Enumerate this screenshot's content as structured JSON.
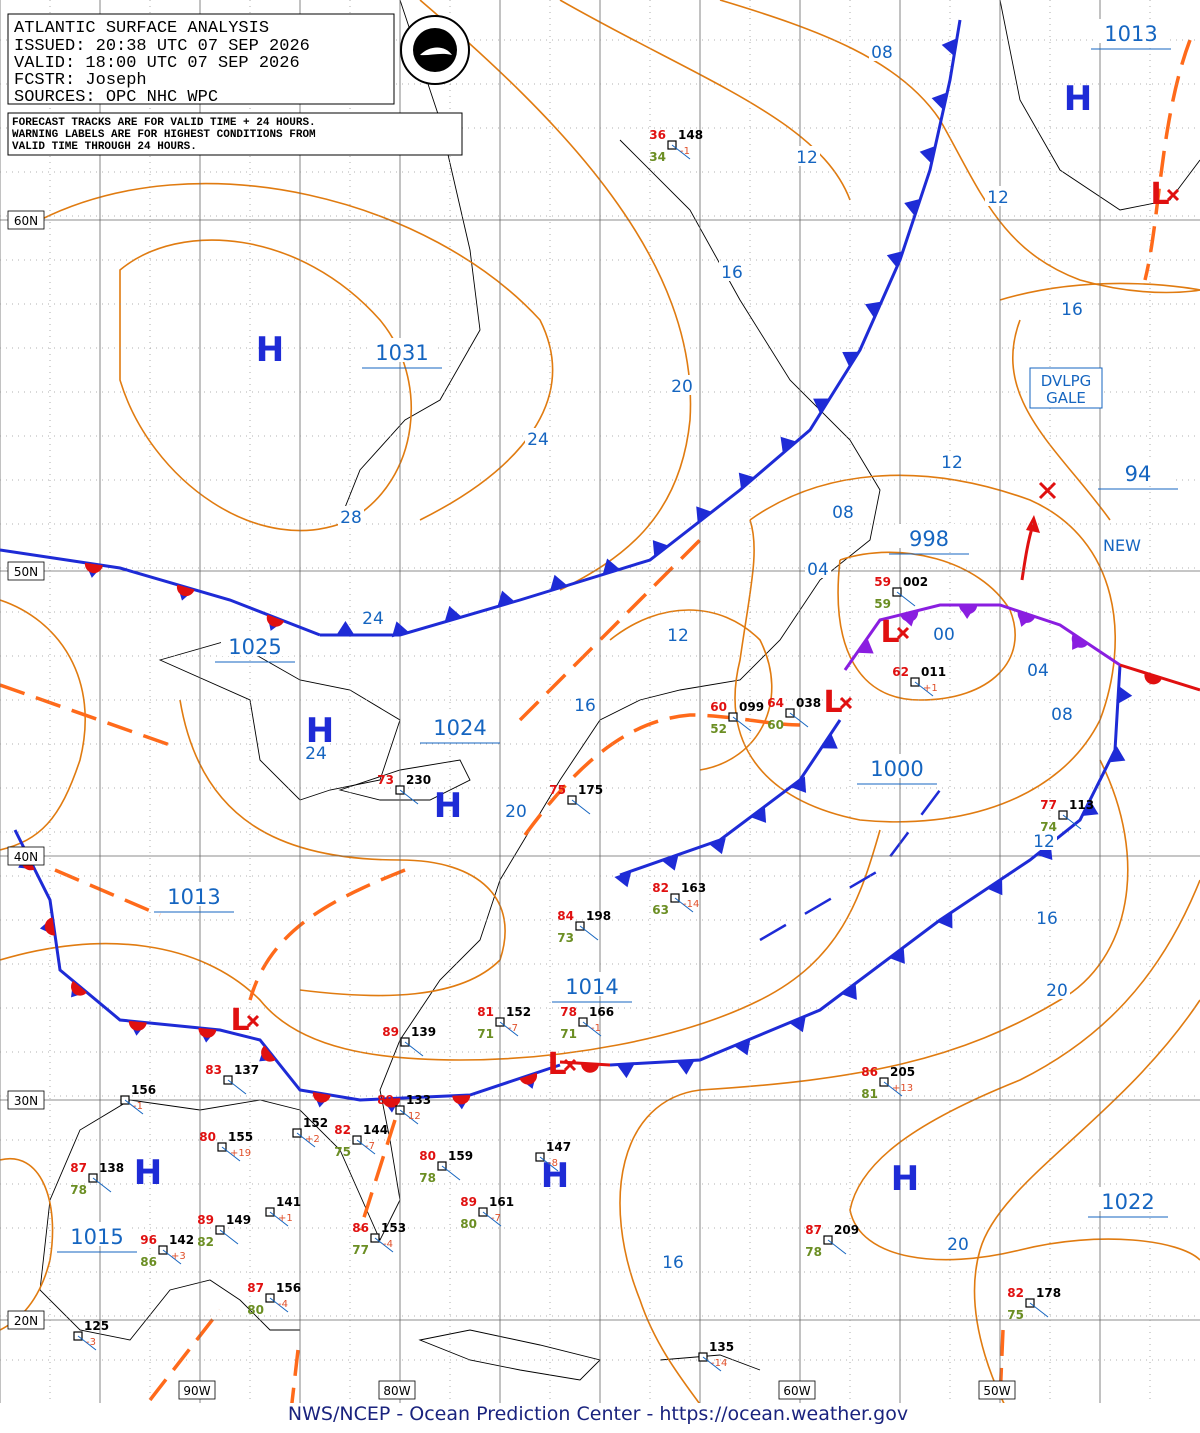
{
  "header": {
    "lines": [
      "ATLANTIC SURFACE ANALYSIS",
      "ISSUED:  20:38 UTC 07 SEP 2026",
      "VALID:   18:00 UTC 07 SEP 2026",
      "FCSTR:   Joseph",
      "SOURCES: OPC NHC WPC"
    ],
    "notice": [
      "FORECAST TRACKS ARE FOR VALID TIME + 24 HOURS.",
      "WARNING LABELS ARE FOR HIGHEST CONDITIONS FROM",
      "VALID TIME THROUGH 24 HOURS."
    ]
  },
  "latitude_labels": [
    "60N",
    "50N",
    "40N",
    "30N",
    "20N"
  ],
  "longitude_labels": [
    "90W",
    "80W",
    "60W",
    "50W"
  ],
  "centers": [
    "H",
    "H",
    "H",
    "H",
    "H",
    "H",
    "H",
    "L",
    "L",
    "L",
    "L",
    "L"
  ],
  "center_pressures": [
    "1031",
    "1025",
    "1024",
    "1013",
    "1014",
    "1000",
    "998",
    "1013",
    "94",
    "1022",
    "1015"
  ],
  "isobar_labels": [
    "08",
    "12",
    "12",
    "16",
    "16",
    "20",
    "24",
    "28",
    "12",
    "08",
    "04",
    "12",
    "00",
    "04",
    "08",
    "24",
    "16",
    "24",
    "20",
    "12",
    "16",
    "20",
    "20",
    "16"
  ],
  "stations": [
    {
      "pressure": "148",
      "temp": "36",
      "dew": "34",
      "change": "-1"
    },
    {
      "pressure": "002",
      "temp": "59",
      "dew": "59"
    },
    {
      "pressure": "011",
      "temp": "62",
      "change": "+1"
    },
    {
      "pressure": "099",
      "temp": "60",
      "dew": "52"
    },
    {
      "pressure": "038",
      "temp": "64",
      "dew": "60"
    },
    {
      "pressure": "113",
      "temp": "77",
      "dew": "74"
    },
    {
      "pressure": "163",
      "temp": "82",
      "dew": "63",
      "change": "-14"
    },
    {
      "pressure": "198",
      "temp": "84",
      "dew": "73"
    },
    {
      "pressure": "166",
      "temp": "78",
      "dew": "71",
      "change": "-1"
    },
    {
      "pressure": "152",
      "temp": "81",
      "dew": "71",
      "change": "-7"
    },
    {
      "pressure": "139",
      "temp": "89"
    },
    {
      "pressure": "133",
      "temp": "89",
      "change": "12"
    },
    {
      "pressure": "205",
      "temp": "86",
      "dew": "81",
      "change": "+13"
    },
    {
      "pressure": "147",
      "change": "-8"
    },
    {
      "pressure": "159",
      "temp": "80",
      "dew": "78"
    },
    {
      "pressure": "161",
      "temp": "89",
      "dew": "80",
      "change": "-7"
    },
    {
      "pressure": "209",
      "temp": "87",
      "dew": "78"
    },
    {
      "pressure": "178",
      "temp": "82",
      "dew": "75"
    },
    {
      "pressure": "153",
      "temp": "86",
      "dew": "77",
      "change": "-4"
    },
    {
      "pressure": "144",
      "temp": "82",
      "dew": "75",
      "change": "-7"
    },
    {
      "pressure": "152",
      "change": "+2"
    },
    {
      "pressure": "141",
      "change": "+1"
    },
    {
      "pressure": "149",
      "temp": "89",
      "dew": "82"
    },
    {
      "pressure": "142",
      "temp": "96",
      "dew": "86",
      "change": "+3"
    },
    {
      "pressure": "138",
      "temp": "87",
      "dew": "78"
    },
    {
      "pressure": "155",
      "temp": "80",
      "change": "+19"
    },
    {
      "pressure": "156",
      "change": "-1"
    },
    {
      "pressure": "137",
      "temp": "83"
    },
    {
      "pressure": "156",
      "temp": "87",
      "dew": "80",
      "change": "-4"
    },
    {
      "pressure": "125",
      "change": "-3"
    },
    {
      "pressure": "135",
      "change": "-14"
    },
    {
      "pressure": "230",
      "temp": "73"
    },
    {
      "pressure": "175",
      "temp": "75"
    }
  ],
  "annotations": {
    "warning": [
      "DVLPG",
      "GALE"
    ],
    "new": "NEW"
  },
  "footer": "NWS/NCEP - Ocean Prediction Center - https://ocean.weather.gov"
}
